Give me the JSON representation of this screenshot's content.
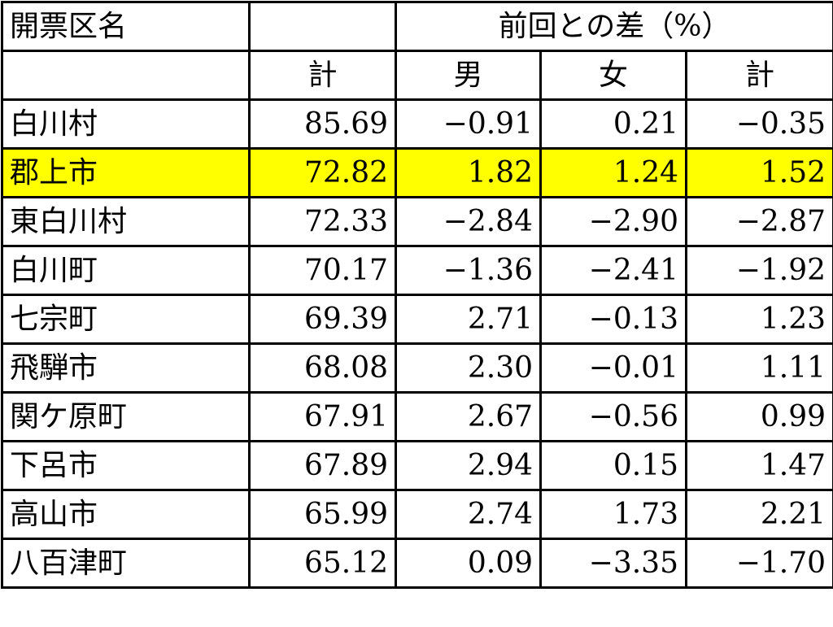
{
  "table": {
    "header": {
      "name": "開票区名",
      "group": "前回との差（%）",
      "total": "計",
      "male": "男",
      "female": "女",
      "diff_total": "計"
    },
    "rows": [
      [
        "白川村",
        "85.69",
        "−0.91",
        "0.21",
        "−0.35"
      ],
      [
        "郡上市",
        "72.82",
        "1.82",
        "1.24",
        "1.52"
      ],
      [
        "東白川村",
        "72.33",
        "−2.84",
        "−2.90",
        "−2.87"
      ],
      [
        "白川町",
        "70.17",
        "−1.36",
        "−2.41",
        "−1.92"
      ],
      [
        "七宗町",
        "69.39",
        "2.71",
        "−0.13",
        "1.23"
      ],
      [
        "飛騨市",
        "68.08",
        "2.30",
        "−0.01",
        "1.11"
      ],
      [
        "関ケ原町",
        "67.91",
        "2.67",
        "−0.56",
        "0.99"
      ],
      [
        "下呂市",
        "67.89",
        "2.94",
        "0.15",
        "1.47"
      ],
      [
        "高山市",
        "65.99",
        "2.74",
        "1.73",
        "2.21"
      ],
      [
        "八百津町",
        "65.12",
        "0.09",
        "−3.35",
        "−1.70"
      ]
    ]
  }
}
